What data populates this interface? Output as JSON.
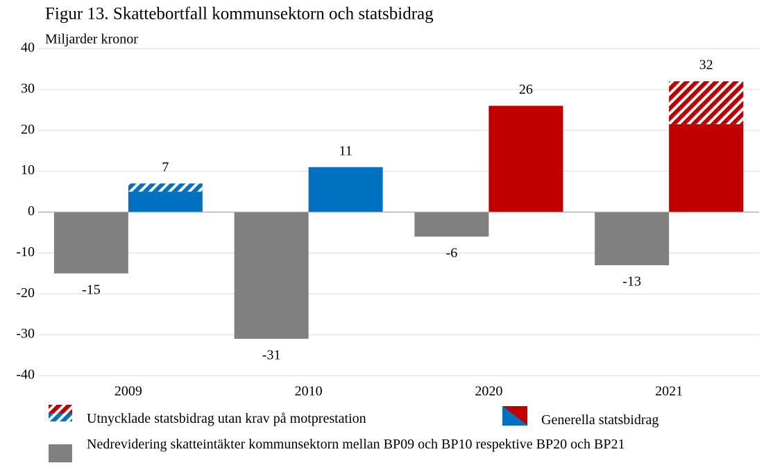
{
  "chart_data": {
    "type": "bar",
    "title": "Figur 13. Skattebortfall kommunsektorn och statsbidrag",
    "subtitle": "Miljarder kronor",
    "categories": [
      "2009",
      "2010",
      "2020",
      "2021"
    ],
    "series": [
      {
        "name": "Nedrevidering skatteintäkter kommunsektorn mellan BP09 och BP10 respektive BP20 och BP21",
        "color": "#808080",
        "values": [
          -15,
          -31,
          -6,
          -13
        ]
      },
      {
        "name": "Generella statsbidrag",
        "colors": [
          "#0070c0",
          "#0070c0",
          "#c00000",
          "#c00000"
        ],
        "values": [
          5,
          11,
          26,
          21.5
        ]
      },
      {
        "name": "Utnycklade statsbidrag utan krav på motprestation",
        "colors": [
          "#0070c0",
          "#0070c0",
          "#c00000",
          "#c00000"
        ],
        "hatched": true,
        "values": [
          2,
          0,
          0,
          10.5
        ]
      }
    ],
    "totals": [
      7,
      11,
      26,
      32
    ],
    "ylim": [
      -40,
      40
    ],
    "yticks": [
      -40,
      -30,
      -20,
      -10,
      0,
      10,
      20,
      30,
      40
    ],
    "grid": true,
    "legend": "bottom"
  }
}
